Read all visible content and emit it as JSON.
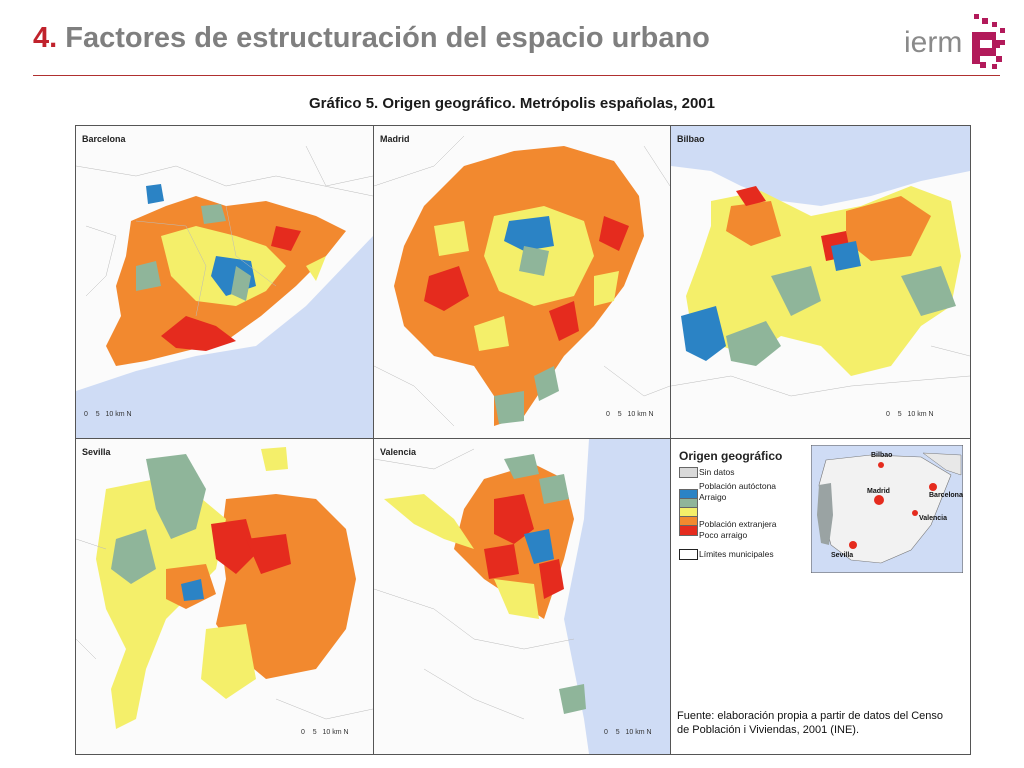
{
  "header": {
    "title_num": "4.",
    "title_text": "Factores de estructuración del espacio urbano",
    "logo_text": "ierm"
  },
  "chart_title": "Gráfico 5. Origen geográfico. Metrópolis españolas, 2001",
  "panels": [
    {
      "name": "Barcelona"
    },
    {
      "name": "Madrid"
    },
    {
      "name": "Bilbao"
    },
    {
      "name": "Sevilla"
    },
    {
      "name": "Valencia"
    }
  ],
  "scale": {
    "t0": "0",
    "t1": "5",
    "t2": "10",
    "unit": "km",
    "north": "N"
  },
  "legend": {
    "title": "Origen geográfico",
    "items": [
      {
        "label": "Sin datos",
        "color": "#d9d9d9"
      },
      {
        "label": "Población autóctona",
        "color": "#2b83c5"
      },
      {
        "label": "Arraigo",
        "color": "#8fb59a"
      },
      {
        "label": "",
        "color": "#f4ef6a"
      },
      {
        "label": "",
        "color": "#f2892f"
      },
      {
        "label": "Población extranjera",
        "color": "#e52b1e"
      },
      {
        "label": "Poco arraigo",
        "color": ""
      },
      {
        "label": "Límites municipales",
        "color": "#ffffff"
      }
    ]
  },
  "inset_map": {
    "labels": [
      "Bilbao",
      "Madrid",
      "Barcelona",
      "Valencia",
      "Sevilla"
    ]
  },
  "source": {
    "line1": "Fuente: elaboración propia a partir de datos del Censo",
    "line2": "de Población i Viviendas, 2001 (INE)."
  },
  "colors": {
    "sea": "#cfdcf5",
    "blue": "#2b83c5",
    "green": "#8fb59a",
    "yellow": "#f4ef6a",
    "orange": "#f2892f",
    "red": "#e52b1e",
    "accent": "#c0222c"
  }
}
